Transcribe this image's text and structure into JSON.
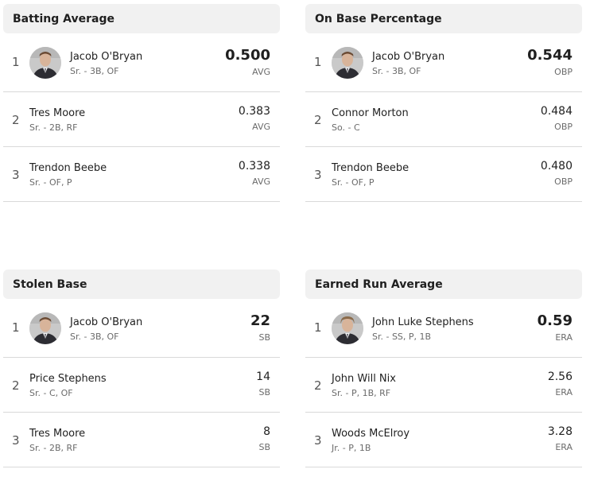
{
  "boards": [
    {
      "title": "Batting Average",
      "rows": [
        {
          "rank": "1",
          "name": "Jacob O'Bryan",
          "detail": "Sr. - 3B, OF",
          "value": "0.500",
          "unit": "AVG",
          "avatar": "player-photo"
        },
        {
          "rank": "2",
          "name": "Tres Moore",
          "detail": "Sr. - 2B, RF",
          "value": "0.383",
          "unit": "AVG"
        },
        {
          "rank": "3",
          "name": "Trendon Beebe",
          "detail": "Sr. - OF, P",
          "value": "0.338",
          "unit": "AVG"
        }
      ]
    },
    {
      "title": "On Base Percentage",
      "rows": [
        {
          "rank": "1",
          "name": "Jacob O'Bryan",
          "detail": "Sr. - 3B, OF",
          "value": "0.544",
          "unit": "OBP",
          "avatar": "player-photo"
        },
        {
          "rank": "2",
          "name": "Connor Morton",
          "detail": "So. - C",
          "value": "0.484",
          "unit": "OBP"
        },
        {
          "rank": "3",
          "name": "Trendon Beebe",
          "detail": "Sr. - OF, P",
          "value": "0.480",
          "unit": "OBP"
        }
      ]
    },
    {
      "title": "Stolen Base",
      "rows": [
        {
          "rank": "1",
          "name": "Jacob O'Bryan",
          "detail": "Sr. - 3B, OF",
          "value": "22",
          "unit": "SB",
          "avatar": "player-photo"
        },
        {
          "rank": "2",
          "name": "Price Stephens",
          "detail": "Sr. - C, OF",
          "value": "14",
          "unit": "SB"
        },
        {
          "rank": "3",
          "name": "Tres Moore",
          "detail": "Sr. - 2B, RF",
          "value": "8",
          "unit": "SB"
        }
      ]
    },
    {
      "title": "Earned Run Average",
      "rows": [
        {
          "rank": "1",
          "name": "John Luke Stephens",
          "detail": "Sr. - SS, P, 1B",
          "value": "0.59",
          "unit": "ERA",
          "avatar": "player-photo"
        },
        {
          "rank": "2",
          "name": "John Will Nix",
          "detail": "Sr. - P, 1B, RF",
          "value": "2.56",
          "unit": "ERA"
        },
        {
          "rank": "3",
          "name": "Woods McElroy",
          "detail": "Jr. - P, 1B",
          "value": "3.28",
          "unit": "ERA"
        }
      ]
    }
  ],
  "colors": {
    "header_bg": "#f1f1f1",
    "divider": "#d9d9d9",
    "text": "#1f1f1f",
    "muted": "#6b6b6b"
  }
}
